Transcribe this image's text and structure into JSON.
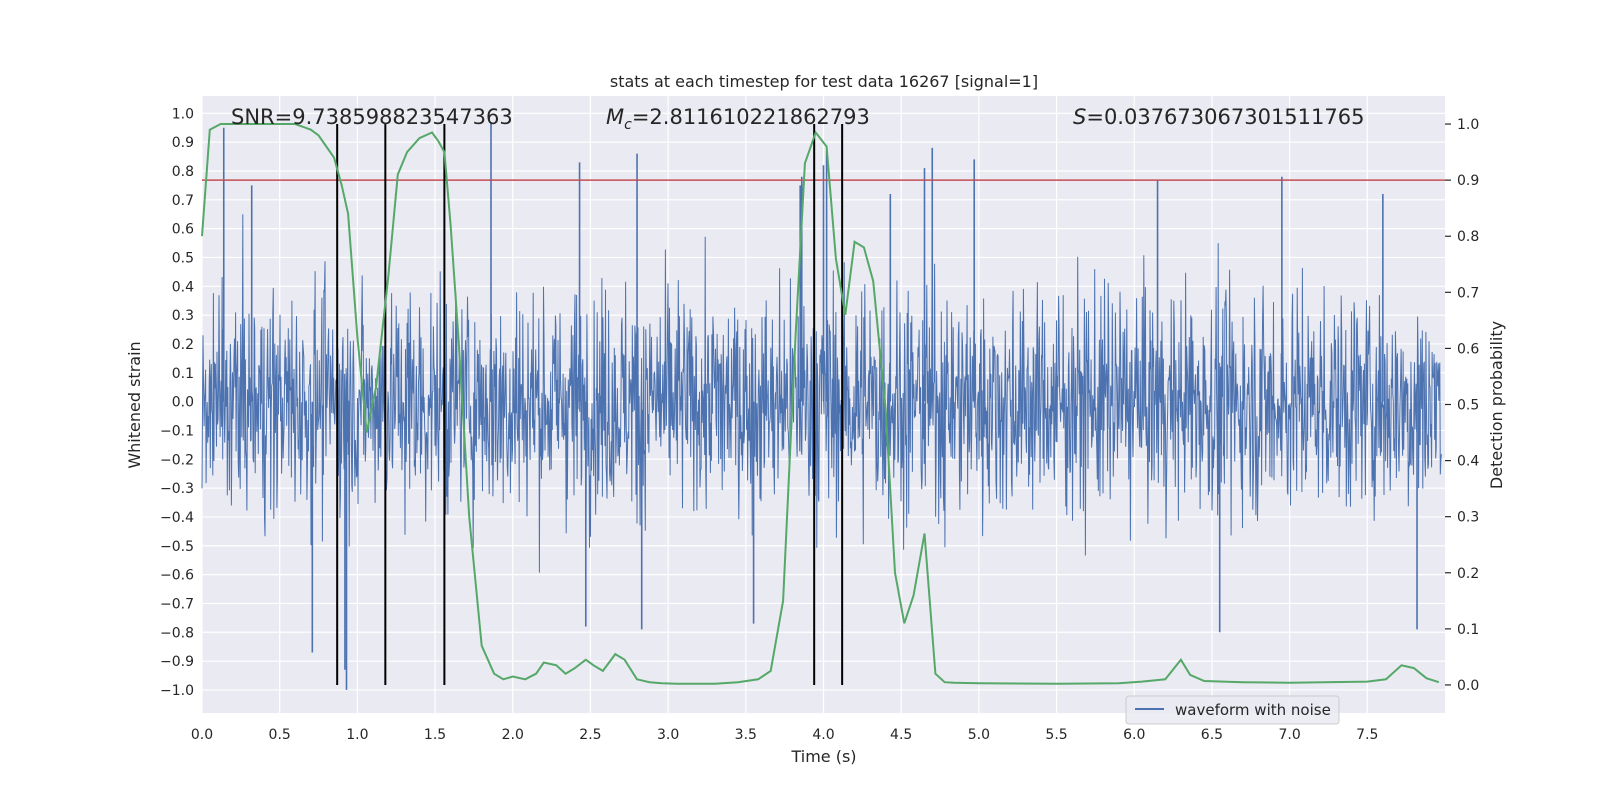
{
  "chart_data": {
    "type": "line",
    "title": "stats at each timestep for test data 16267 [signal=1]",
    "xlabel": "Time (s)",
    "ylabel_left": "Whitened strain",
    "ylabel_right": "Detection probability",
    "xlim": [
      0,
      8
    ],
    "ylim_left": [
      -1.08,
      1.06
    ],
    "ylim_right": [
      -0.05,
      1.05
    ],
    "x_ticks": [
      "0.0",
      "0.5",
      "1.0",
      "1.5",
      "2.0",
      "2.5",
      "3.0",
      "3.5",
      "4.0",
      "4.5",
      "5.0",
      "5.5",
      "6.0",
      "6.5",
      "7.0",
      "7.5"
    ],
    "y_ticks_left": [
      "1.0",
      "0.9",
      "0.8",
      "0.7",
      "0.6",
      "0.5",
      "0.4",
      "0.3",
      "0.2",
      "0.1",
      "0.0",
      "−0.1",
      "−0.2",
      "−0.3",
      "−0.4",
      "−0.5",
      "−0.6",
      "−0.7",
      "−0.8",
      "−0.9",
      "−1.0"
    ],
    "y_ticks_right": [
      "1.0",
      "0.9",
      "0.8",
      "0.7",
      "0.6",
      "0.5",
      "0.4",
      "0.3",
      "0.2",
      "0.1",
      "0.0"
    ],
    "grid": true,
    "legend": {
      "position": "lower-right",
      "entries": [
        "waveform with noise"
      ]
    },
    "annotations": {
      "snr": "SNR=9.738598823547363",
      "mc_symbol": "M",
      "mc_sub": "c",
      "mc_value": "=2.811610221862793",
      "s_symbol": "S",
      "s_value": "=0.037673067301511765"
    },
    "threshold_probability": 0.9,
    "event_times": [
      0.87,
      1.18,
      1.56,
      3.94,
      4.12
    ],
    "series": [
      {
        "name": "waveform with noise",
        "color": "#4c72b0",
        "axis": "left",
        "envelope": {
          "upper": 0.6,
          "lower": -0.45
        },
        "spikes": [
          [
            0.14,
            0.95
          ],
          [
            0.32,
            0.75
          ],
          [
            0.93,
            -1.0
          ],
          [
            1.86,
            0.97
          ],
          [
            2.43,
            0.83
          ],
          [
            2.8,
            0.86
          ],
          [
            3.85,
            0.75
          ],
          [
            3.86,
            0.78
          ],
          [
            4.0,
            0.82
          ],
          [
            4.02,
            0.87
          ],
          [
            4.43,
            0.72
          ],
          [
            4.65,
            0.81
          ],
          [
            4.7,
            0.88
          ],
          [
            4.97,
            0.84
          ],
          [
            6.15,
            0.77
          ],
          [
            6.95,
            0.78
          ],
          [
            7.6,
            0.72
          ],
          [
            0.71,
            -0.87
          ],
          [
            0.92,
            -0.93
          ],
          [
            2.47,
            -0.78
          ],
          [
            2.83,
            -0.79
          ],
          [
            3.55,
            -0.77
          ],
          [
            6.55,
            -0.8
          ],
          [
            7.82,
            -0.79
          ]
        ]
      },
      {
        "name": "",
        "color": "#55a868",
        "axis": "right",
        "x": [
          0.0,
          0.05,
          0.12,
          0.2,
          0.4,
          0.6,
          0.7,
          0.75,
          0.8,
          0.85,
          0.9,
          0.94,
          1.0,
          1.06,
          1.12,
          1.2,
          1.26,
          1.32,
          1.4,
          1.48,
          1.52,
          1.56,
          1.6,
          1.65,
          1.72,
          1.8,
          1.88,
          1.94,
          2.0,
          2.08,
          2.15,
          2.2,
          2.28,
          2.34,
          2.4,
          2.47,
          2.52,
          2.58,
          2.66,
          2.72,
          2.8,
          2.88,
          2.96,
          3.06,
          3.16,
          3.3,
          3.45,
          3.58,
          3.66,
          3.74,
          3.82,
          3.88,
          3.95,
          4.02,
          4.08,
          4.14,
          4.2,
          4.26,
          4.32,
          4.4,
          4.46,
          4.52,
          4.58,
          4.65,
          4.72,
          4.78,
          4.84,
          5.0,
          5.5,
          5.9,
          6.05,
          6.2,
          6.3,
          6.36,
          6.45,
          6.7,
          7.0,
          7.5,
          7.62,
          7.72,
          7.8,
          7.88,
          7.96
        ],
        "y": [
          0.8,
          0.99,
          1.0,
          1.0,
          1.0,
          1.0,
          0.99,
          0.98,
          0.96,
          0.94,
          0.89,
          0.84,
          0.62,
          0.45,
          0.53,
          0.73,
          0.91,
          0.95,
          0.975,
          0.985,
          0.97,
          0.95,
          0.82,
          0.62,
          0.3,
          0.07,
          0.02,
          0.01,
          0.015,
          0.01,
          0.02,
          0.04,
          0.035,
          0.02,
          0.03,
          0.045,
          0.035,
          0.025,
          0.055,
          0.045,
          0.01,
          0.005,
          0.003,
          0.002,
          0.002,
          0.002,
          0.005,
          0.01,
          0.025,
          0.15,
          0.62,
          0.93,
          0.985,
          0.96,
          0.76,
          0.66,
          0.79,
          0.78,
          0.72,
          0.49,
          0.2,
          0.11,
          0.16,
          0.27,
          0.02,
          0.005,
          0.004,
          0.003,
          0.002,
          0.003,
          0.006,
          0.01,
          0.045,
          0.018,
          0.007,
          0.005,
          0.004,
          0.006,
          0.01,
          0.035,
          0.03,
          0.012,
          0.005
        ]
      }
    ]
  }
}
